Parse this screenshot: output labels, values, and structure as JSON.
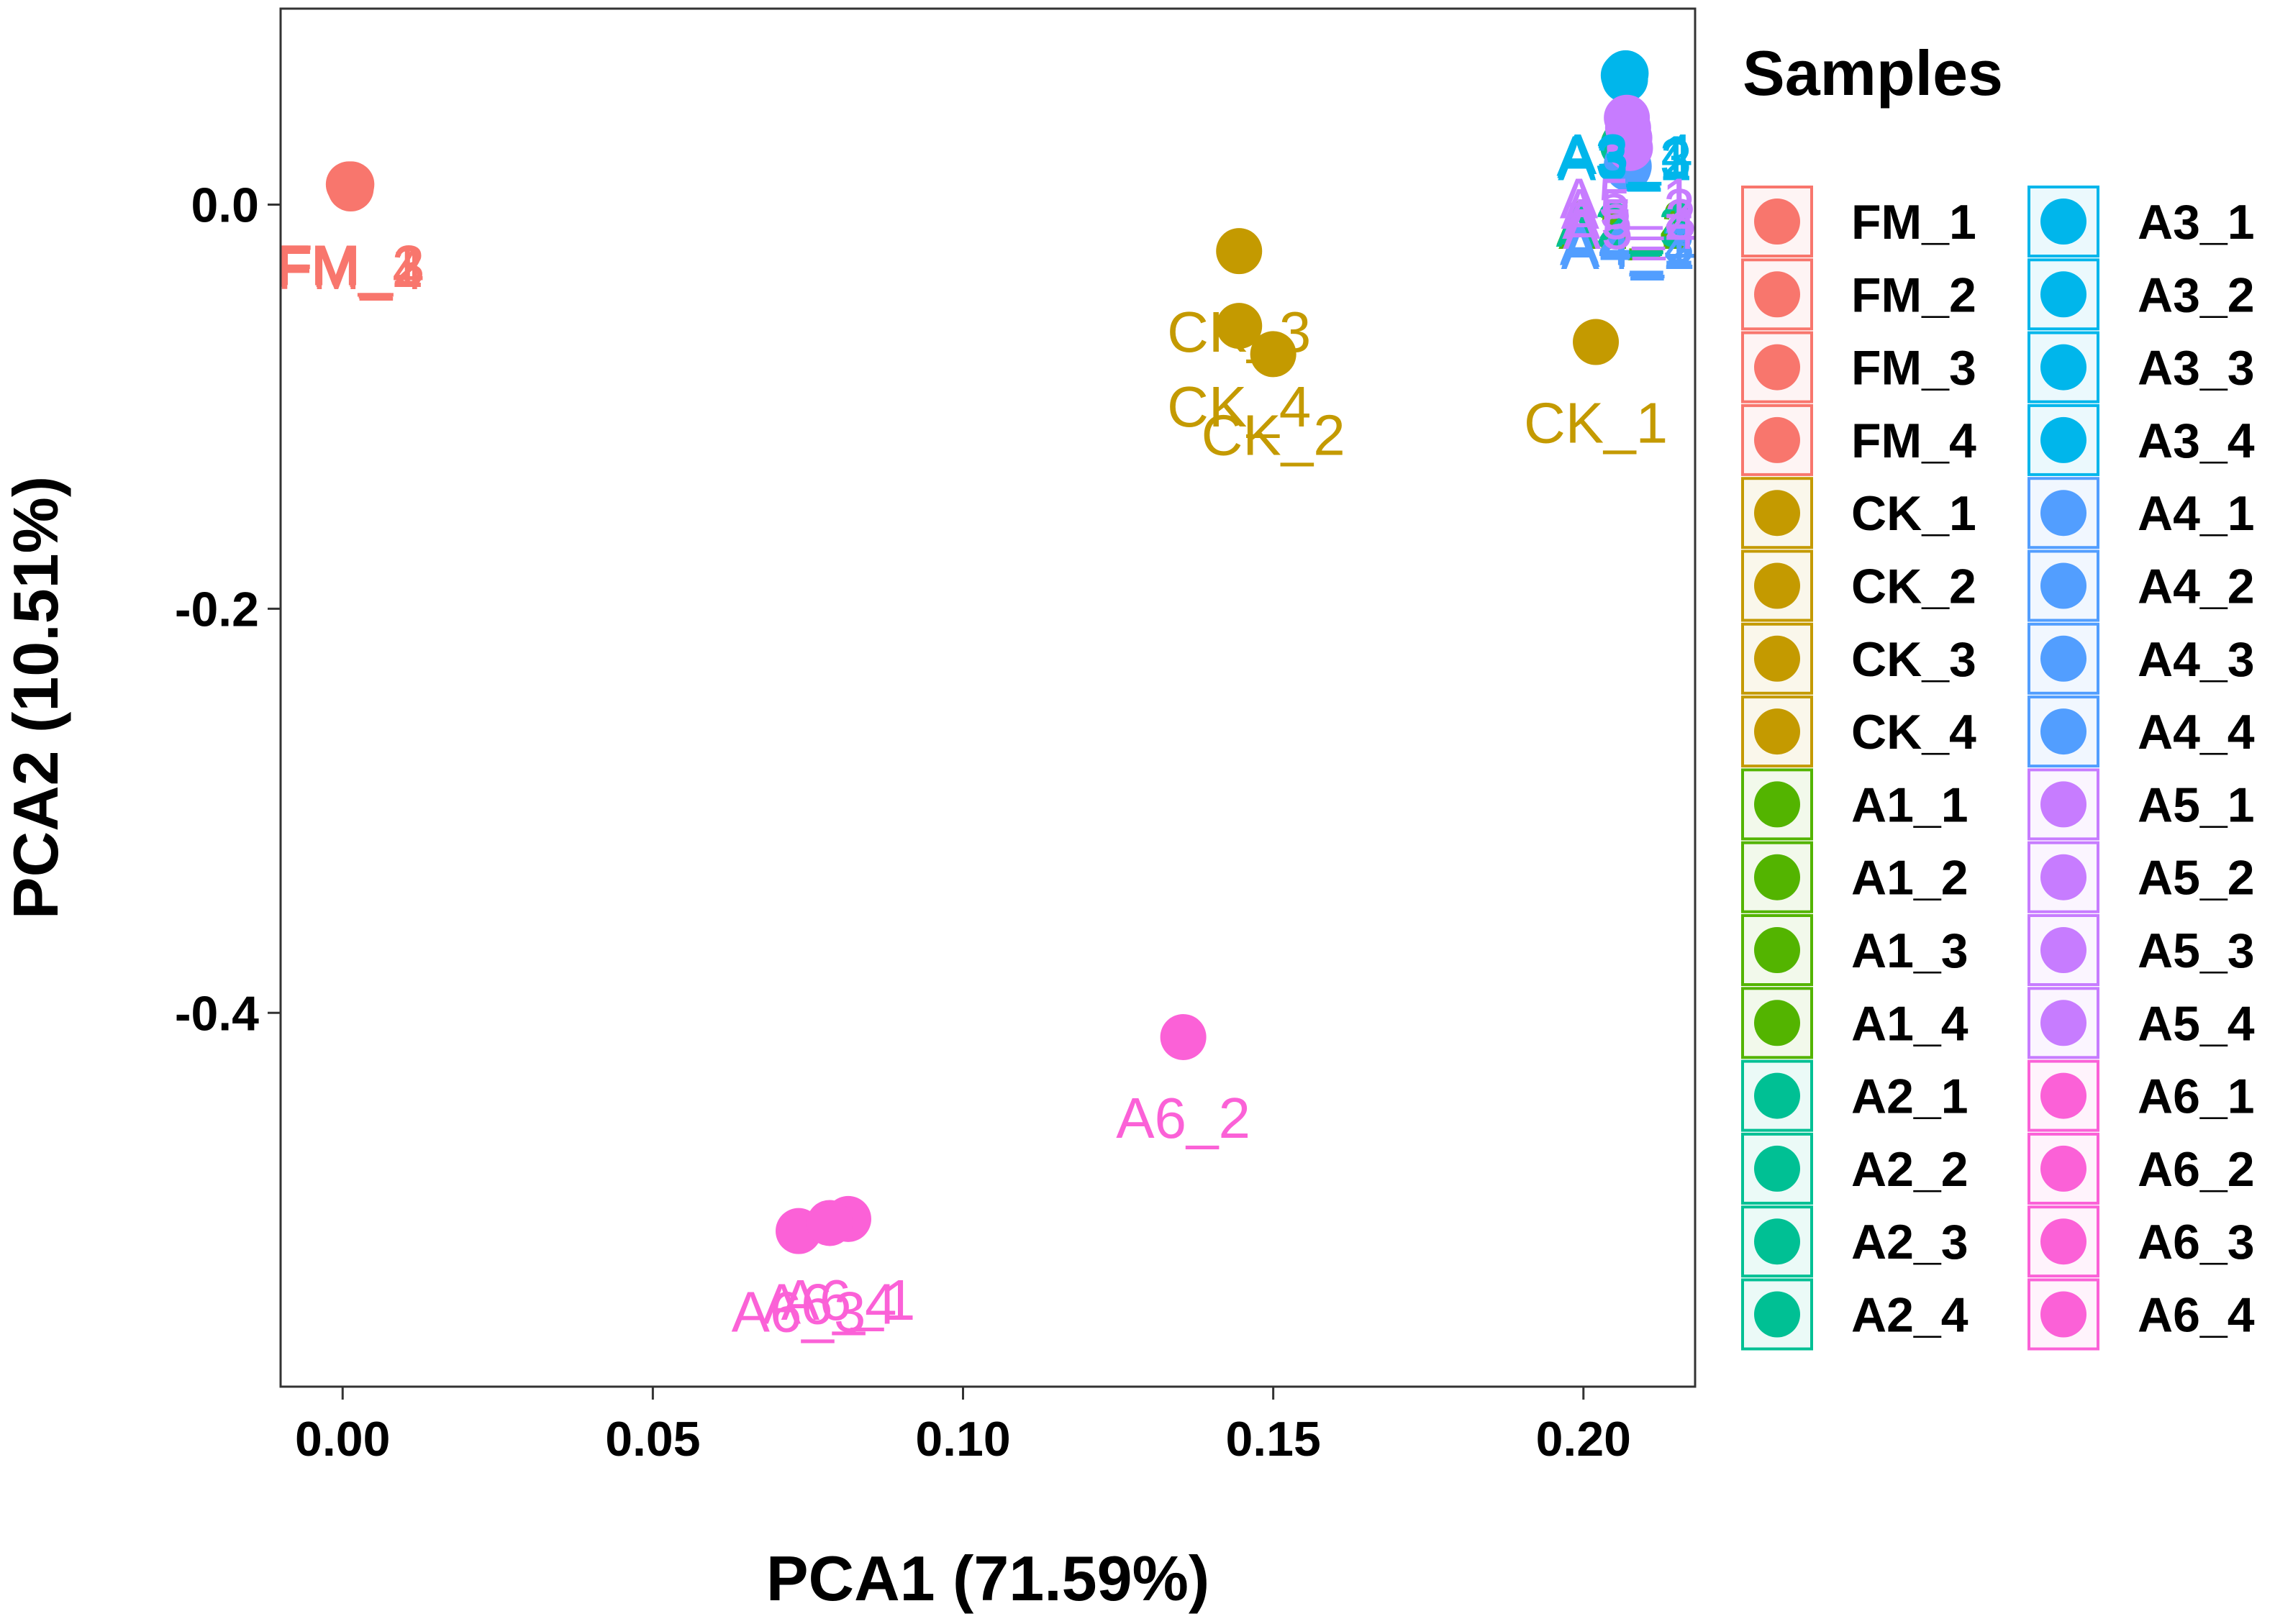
{
  "chart_data": {
    "type": "scatter",
    "title": "",
    "xlabel": "PCA1 (71.59%)",
    "ylabel": "PCA2 (10.51%)",
    "xlim": [
      -0.01,
      0.218
    ],
    "ylim": [
      -0.585,
      0.097
    ],
    "xticks": [
      0.0,
      0.05,
      0.1,
      0.15,
      0.2
    ],
    "xtick_labels": [
      "0.00",
      "0.05",
      "0.10",
      "0.15",
      "0.20"
    ],
    "yticks": [
      0.0,
      -0.2,
      -0.4
    ],
    "ytick_labels": [
      "0.0",
      "-0.2",
      "-0.4"
    ],
    "grid": false,
    "legend": {
      "title": "Samples",
      "placement": "right",
      "columns": 2
    },
    "groups": [
      {
        "name": "FM",
        "color": "#F8766D"
      },
      {
        "name": "CK",
        "color": "#C49A00"
      },
      {
        "name": "A1",
        "color": "#53B400"
      },
      {
        "name": "A2",
        "color": "#00C094"
      },
      {
        "name": "A3",
        "color": "#00B6EB"
      },
      {
        "name": "A4",
        "color": "#529EFF"
      },
      {
        "name": "A5",
        "color": "#C77CFF"
      },
      {
        "name": "A6",
        "color": "#FB61D7"
      }
    ],
    "points": [
      {
        "label": "FM_1",
        "group": "FM",
        "x": 0.001,
        "y": 0.01
      },
      {
        "label": "FM_2",
        "group": "FM",
        "x": 0.0012,
        "y": 0.009
      },
      {
        "label": "FM_3",
        "group": "FM",
        "x": 0.0014,
        "y": 0.01
      },
      {
        "label": "FM_4",
        "group": "FM",
        "x": 0.0013,
        "y": 0.008
      },
      {
        "label": "CK_1",
        "group": "CK",
        "x": 0.202,
        "y": -0.068
      },
      {
        "label": "CK_2",
        "group": "CK",
        "x": 0.15,
        "y": -0.074
      },
      {
        "label": "CK_3",
        "group": "CK",
        "x": 0.1445,
        "y": -0.023
      },
      {
        "label": "CK_4",
        "group": "CK",
        "x": 0.1445,
        "y": -0.06
      },
      {
        "label": "A1_1",
        "group": "A1",
        "x": 0.2065,
        "y": 0.03
      },
      {
        "label": "A1_2",
        "group": "A1",
        "x": 0.2068,
        "y": 0.028
      },
      {
        "label": "A1_3",
        "group": "A1",
        "x": 0.207,
        "y": 0.032
      },
      {
        "label": "A1_4",
        "group": "A1",
        "x": 0.2066,
        "y": 0.029
      },
      {
        "label": "A2_1",
        "group": "A2",
        "x": 0.2067,
        "y": 0.031
      },
      {
        "label": "A2_2",
        "group": "A2",
        "x": 0.2069,
        "y": 0.03
      },
      {
        "label": "A2_3",
        "group": "A2",
        "x": 0.2064,
        "y": 0.029
      },
      {
        "label": "A2_4",
        "group": "A2",
        "x": 0.2071,
        "y": 0.031
      },
      {
        "label": "A3_1",
        "group": "A3",
        "x": 0.2065,
        "y": 0.064
      },
      {
        "label": "A3_2",
        "group": "A3",
        "x": 0.2067,
        "y": 0.062
      },
      {
        "label": "A3_3",
        "group": "A3",
        "x": 0.2066,
        "y": 0.063
      },
      {
        "label": "A3_4",
        "group": "A3",
        "x": 0.2068,
        "y": 0.065
      },
      {
        "label": "A4_1",
        "group": "A4",
        "x": 0.207,
        "y": 0.02
      },
      {
        "label": "A4_2",
        "group": "A4",
        "x": 0.2072,
        "y": 0.018
      },
      {
        "label": "A4_3",
        "group": "A4",
        "x": 0.2071,
        "y": 0.021
      },
      {
        "label": "A4_4",
        "group": "A4",
        "x": 0.2073,
        "y": 0.019
      },
      {
        "label": "A5_1",
        "group": "A5",
        "x": 0.207,
        "y": 0.043
      },
      {
        "label": "A5_2",
        "group": "A5",
        "x": 0.2072,
        "y": 0.038
      },
      {
        "label": "A5_3",
        "group": "A5",
        "x": 0.2074,
        "y": 0.033
      },
      {
        "label": "A5_4",
        "group": "A5",
        "x": 0.2075,
        "y": 0.028
      },
      {
        "label": "A6_1",
        "group": "A6",
        "x": 0.0815,
        "y": -0.502
      },
      {
        "label": "A6_2",
        "group": "A6",
        "x": 0.1355,
        "y": -0.412
      },
      {
        "label": "A6_3",
        "group": "A6",
        "x": 0.0735,
        "y": -0.508
      },
      {
        "label": "A6_4",
        "group": "A6",
        "x": 0.0785,
        "y": -0.504
      }
    ]
  }
}
